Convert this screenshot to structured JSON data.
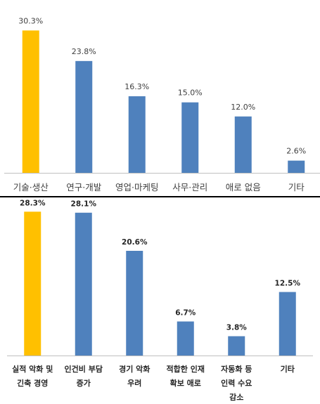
{
  "colors": {
    "highlight": "#FFC000",
    "bar": "#4F81BD",
    "axis": "#BFBFBF",
    "divider": "#000000"
  },
  "chart_data": [
    {
      "type": "bar",
      "title": "",
      "xlabel": "",
      "ylabel": "",
      "ylim": [
        0,
        32
      ],
      "grid": false,
      "legend": "none",
      "highlight_index": 0,
      "categories": [
        "기술·생산",
        "연구·개발",
        "영업·마케팅",
        "사무·관리",
        "애로 없음",
        "기타"
      ],
      "values": [
        30.3,
        23.8,
        16.3,
        15.0,
        12.0,
        2.6
      ],
      "value_labels": [
        "30.3%",
        "23.8%",
        "16.3%",
        "15.0%",
        "12.0%",
        "2.6%"
      ]
    },
    {
      "type": "bar",
      "title": "",
      "xlabel": "",
      "ylabel": "",
      "ylim": [
        0,
        30
      ],
      "grid": false,
      "legend": "none",
      "highlight_index": 0,
      "categories": [
        [
          "실적 악화 및",
          "긴축 경영"
        ],
        [
          "인건비 부담",
          "증가"
        ],
        [
          "경기 악화",
          "우려"
        ],
        [
          "적합한 인재",
          "확보 애로"
        ],
        [
          "자동화 등",
          "인력 수요",
          "감소"
        ],
        [
          "기타"
        ]
      ],
      "values": [
        28.3,
        28.1,
        20.6,
        6.7,
        3.8,
        12.5
      ],
      "value_labels": [
        "28.3%",
        "28.1%",
        "20.6%",
        "6.7%",
        "3.8%",
        "12.5%"
      ]
    }
  ]
}
